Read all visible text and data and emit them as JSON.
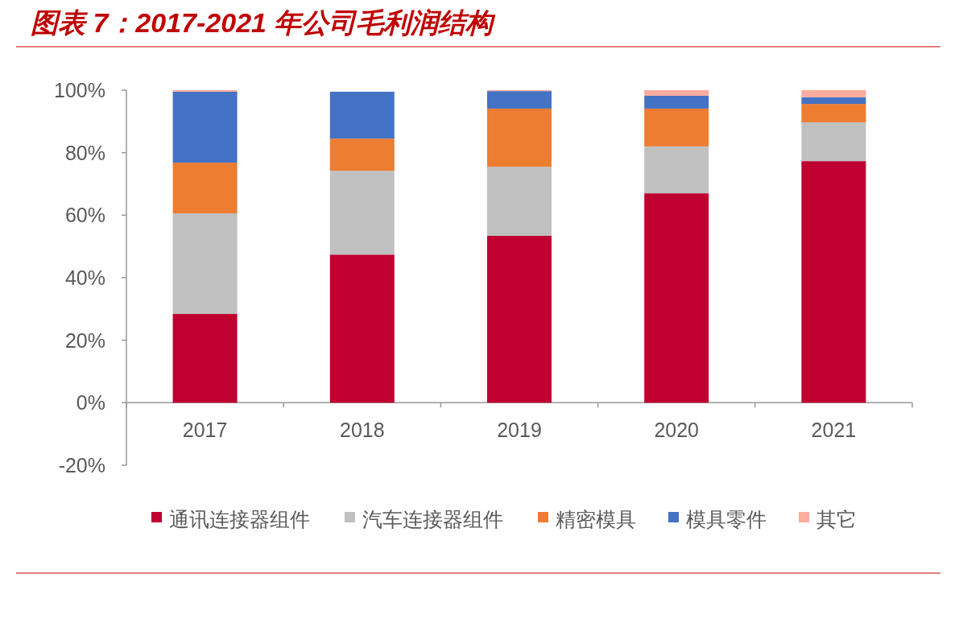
{
  "chart_data": {
    "type": "bar",
    "stacked": true,
    "title": "图表 7：2017-2021 年公司毛利润结构",
    "categories": [
      "2017",
      "2018",
      "2019",
      "2020",
      "2021"
    ],
    "series": [
      {
        "name": "通讯连接器组件",
        "color": "#c00030",
        "values": [
          28.4,
          47.4,
          53.4,
          67.0,
          77.3
        ]
      },
      {
        "name": "汽车连接器组件",
        "color": "#c0c0c0",
        "values": [
          32.2,
          26.8,
          22.1,
          15.0,
          12.4
        ]
      },
      {
        "name": "精密模具",
        "color": "#ed7d31",
        "values": [
          16.2,
          10.3,
          18.6,
          12.1,
          5.9
        ]
      },
      {
        "name": "模具零件",
        "color": "#4472c4",
        "values": [
          22.7,
          15.0,
          5.6,
          4.1,
          2.1
        ]
      },
      {
        "name": "其它",
        "color": "#ffab9e",
        "values": [
          0.5,
          0,
          0.3,
          1.8,
          2.3
        ]
      }
    ],
    "ylim": [
      -20,
      100
    ],
    "yticks": [
      {
        "value": -20,
        "label": "-20%"
      },
      {
        "value": 0,
        "label": "0%"
      },
      {
        "value": 20,
        "label": "20%"
      },
      {
        "value": 40,
        "label": "40%"
      },
      {
        "value": 60,
        "label": "60%"
      },
      {
        "value": 80,
        "label": "80%"
      },
      {
        "value": 100,
        "label": "100%"
      }
    ],
    "legend": "bottom"
  }
}
